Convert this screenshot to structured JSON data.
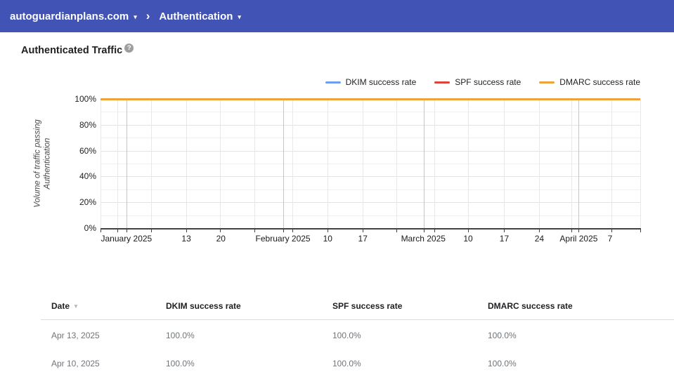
{
  "topbar": {
    "bg_color": "#4154B5",
    "domain_label": "autoguardianplans.com",
    "section_label": "Authentication",
    "separator": "›",
    "caret": "▾"
  },
  "icons": {
    "help": "?",
    "sort_desc": "▼"
  },
  "page": {
    "title": "Authenticated Traffic"
  },
  "chart_data": {
    "type": "line",
    "title": "Authenticated Traffic",
    "ylabel_lines": [
      "Volume of traffic passing",
      "Authentication"
    ],
    "ylim": [
      0,
      100
    ],
    "grid": true,
    "legend_position": "top-right",
    "y_tick_values": [
      100,
      80,
      60,
      40,
      20,
      0
    ],
    "y_tick_labels": [
      "100%",
      "80%",
      "60%",
      "40%",
      "20%",
      "0%"
    ],
    "x_tick_labels": [
      {
        "text": "January 2025",
        "pos": 0.048
      },
      {
        "text": "13",
        "pos": 0.159
      },
      {
        "text": "20",
        "pos": 0.223
      },
      {
        "text": "February 2025",
        "pos": 0.338
      },
      {
        "text": "10",
        "pos": 0.421
      },
      {
        "text": "17",
        "pos": 0.486
      },
      {
        "text": "March 2025",
        "pos": 0.598
      },
      {
        "text": "10",
        "pos": 0.681
      },
      {
        "text": "17",
        "pos": 0.748
      },
      {
        "text": "24",
        "pos": 0.813
      },
      {
        "text": "April 2025",
        "pos": 0.886
      },
      {
        "text": "7",
        "pos": 0.944
      }
    ],
    "x_gridlines": [
      {
        "pos": 0.0,
        "major": false
      },
      {
        "pos": 0.031,
        "major": false
      },
      {
        "pos": 0.048,
        "major": true
      },
      {
        "pos": 0.094,
        "major": false
      },
      {
        "pos": 0.159,
        "major": false
      },
      {
        "pos": 0.221,
        "major": false
      },
      {
        "pos": 0.285,
        "major": false
      },
      {
        "pos": 0.339,
        "major": true
      },
      {
        "pos": 0.355,
        "major": false
      },
      {
        "pos": 0.421,
        "major": false
      },
      {
        "pos": 0.486,
        "major": false
      },
      {
        "pos": 0.548,
        "major": false
      },
      {
        "pos": 0.599,
        "major": true
      },
      {
        "pos": 0.619,
        "major": false
      },
      {
        "pos": 0.681,
        "major": false
      },
      {
        "pos": 0.747,
        "major": false
      },
      {
        "pos": 0.813,
        "major": false
      },
      {
        "pos": 0.872,
        "major": false
      },
      {
        "pos": 0.885,
        "major": true
      },
      {
        "pos": 0.947,
        "major": false
      },
      {
        "pos": 1.0,
        "major": false
      }
    ],
    "series": [
      {
        "name": "DKIM success rate",
        "color": "#6D9EEB",
        "value_percent": 100.0
      },
      {
        "name": "SPF success rate",
        "color": "#DB4437",
        "value_percent": 100.0
      },
      {
        "name": "DMARC success rate",
        "color": "#EDA33C",
        "value_percent": 100.0
      }
    ]
  },
  "table": {
    "columns": [
      {
        "label": "Date",
        "sorted": true
      },
      {
        "label": "DKIM success rate",
        "sorted": false
      },
      {
        "label": "SPF success rate",
        "sorted": false
      },
      {
        "label": "DMARC success rate",
        "sorted": false
      }
    ],
    "rows": [
      [
        "Apr 13, 2025",
        "100.0%",
        "100.0%",
        "100.0%"
      ],
      [
        "Apr 10, 2025",
        "100.0%",
        "100.0%",
        "100.0%"
      ]
    ]
  }
}
